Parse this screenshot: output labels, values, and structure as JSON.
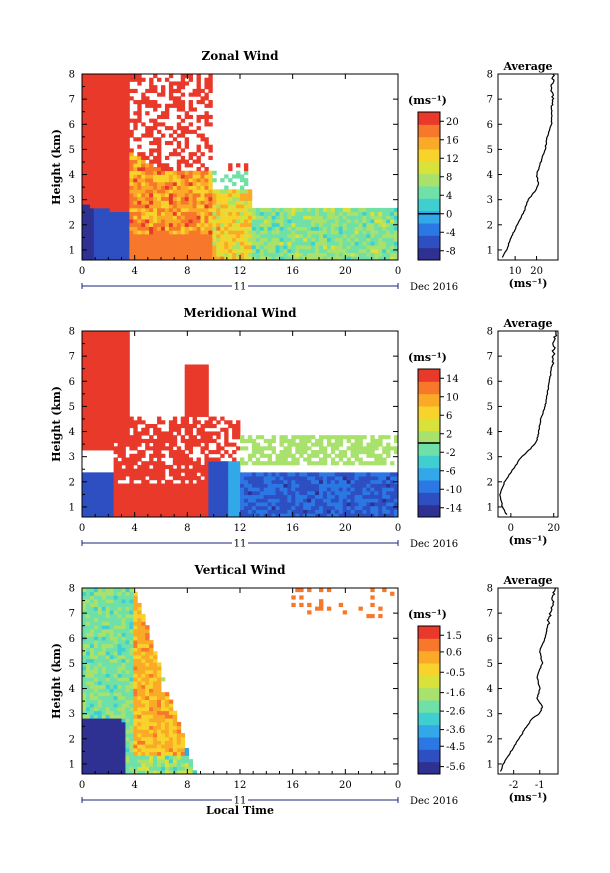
{
  "chart_data": [
    {
      "type": "heatmap",
      "title": "Zonal Wind",
      "ylabel": "Height (km)",
      "xticks": [
        "0",
        "4",
        "8",
        "12",
        "16",
        "20",
        "0"
      ],
      "yticks": [
        "1",
        "2",
        "3",
        "4",
        "5",
        "6",
        "7",
        "8"
      ],
      "xlim": [
        0,
        24
      ],
      "ylim": [
        0.6,
        8
      ],
      "day_label": "11",
      "date_label": "Dec 2016",
      "colorbar_unit": "(ms⁻¹)",
      "colorbar_ticks": [
        "20",
        "16",
        "12",
        "8",
        "4",
        "0",
        "-4",
        "-8"
      ],
      "colorbar_range": [
        -10,
        22
      ],
      "profile": {
        "title": "Average",
        "xlabel": "(ms⁻¹)",
        "xticks": [
          "10",
          "20"
        ],
        "xlim": [
          2,
          30
        ],
        "heights": [
          0.7,
          1.0,
          1.5,
          2.0,
          2.5,
          3.0,
          3.3,
          3.6,
          4.0,
          4.5,
          5.0,
          5.5,
          6.0,
          6.5,
          7.0,
          7.5,
          8.0
        ],
        "values": [
          4,
          6,
          8,
          11,
          14,
          16,
          19,
          21,
          20,
          22,
          24,
          25,
          27,
          27,
          28,
          27,
          28
        ]
      }
    },
    {
      "type": "heatmap",
      "title": "Meridional Wind",
      "ylabel": "Height (km)",
      "xticks": [
        "0",
        "4",
        "8",
        "12",
        "16",
        "20",
        "0"
      ],
      "yticks": [
        "1",
        "2",
        "3",
        "4",
        "5",
        "6",
        "7",
        "8"
      ],
      "xlim": [
        0,
        24
      ],
      "ylim": [
        0.6,
        8
      ],
      "day_label": "11",
      "date_label": "Dec 2016",
      "colorbar_unit": "(ms⁻¹)",
      "colorbar_ticks": [
        "14",
        "10",
        "6",
        "2",
        "-2",
        "-6",
        "-10",
        "-14"
      ],
      "colorbar_range": [
        -16,
        16
      ],
      "profile": {
        "title": "Average",
        "xlabel": "(ms⁻¹)",
        "xticks": [
          "0",
          "20"
        ],
        "xlim": [
          -6,
          22
        ],
        "heights": [
          0.7,
          1.0,
          1.5,
          2.0,
          2.5,
          3.0,
          3.3,
          3.6,
          4.0,
          4.5,
          5.0,
          5.5,
          6.0,
          6.5,
          7.0,
          7.5,
          8.0
        ],
        "values": [
          -2,
          -4,
          -5,
          -3,
          1,
          5,
          9,
          12,
          13,
          14,
          16,
          17,
          18,
          19,
          20,
          20,
          21
        ]
      }
    },
    {
      "type": "heatmap",
      "title": "Vertical Wind",
      "xlabel": "Local Time",
      "ylabel": "Height (km)",
      "xticks": [
        "0",
        "4",
        "8",
        "12",
        "16",
        "20",
        "0"
      ],
      "yticks": [
        "1",
        "2",
        "3",
        "4",
        "5",
        "6",
        "7",
        "8"
      ],
      "xlim": [
        0,
        24
      ],
      "ylim": [
        0.6,
        8
      ],
      "day_label": "11",
      "date_label": "Dec 2016",
      "colorbar_unit": "(ms⁻¹)",
      "colorbar_ticks": [
        "1.5",
        "0.6",
        "-0.5",
        "-1.6",
        "-2.6",
        "-3.6",
        "-4.5",
        "-5.6"
      ],
      "colorbar_range": [
        -6,
        2
      ],
      "profile": {
        "title": "Average",
        "xlabel": "(ms⁻¹)",
        "xticks": [
          "-2",
          "-1"
        ],
        "xlim": [
          -2.6,
          -0.3
        ],
        "heights": [
          0.7,
          1.0,
          1.5,
          2.0,
          2.5,
          2.8,
          3.0,
          3.3,
          3.6,
          4.0,
          4.5,
          5.0,
          5.5,
          6.0,
          6.5,
          7.0,
          7.5,
          8.0
        ],
        "values": [
          -2.5,
          -2.4,
          -2.1,
          -1.8,
          -1.5,
          -1.3,
          -1.0,
          -0.9,
          -1.1,
          -1.0,
          -1.1,
          -0.9,
          -1.0,
          -0.8,
          -0.7,
          -0.6,
          -0.5,
          -0.4
        ]
      }
    }
  ],
  "colormap": [
    "#2e3192",
    "#2d4fc2",
    "#2b78e4",
    "#32a8e8",
    "#3fcfd0",
    "#6ee0a8",
    "#a8e26d",
    "#d9e23b",
    "#f7d32b",
    "#fbaa28",
    "#f7772b",
    "#e8392b"
  ]
}
